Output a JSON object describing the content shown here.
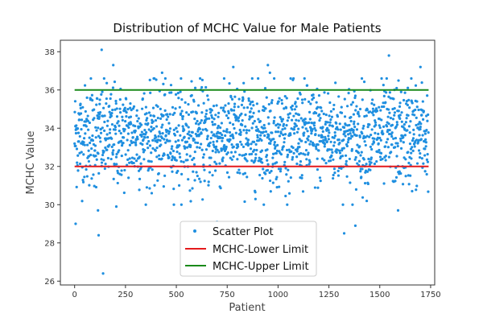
{
  "chart_data": {
    "type": "scatter",
    "title": "Distribution of MCHC Value for Male Patients",
    "xlabel": "Patient",
    "ylabel": "MCHC Value",
    "xlim": [
      -70,
      1770
    ],
    "ylim": [
      25.8,
      38.6
    ],
    "xticks": [
      0,
      250,
      500,
      750,
      1000,
      1250,
      1500,
      1750
    ],
    "yticks": [
      26,
      28,
      30,
      32,
      34,
      36,
      38
    ],
    "grid": false,
    "legend_position": "lower-center",
    "colors": {
      "scatter": "#1f8fe0",
      "lower_limit": "#e41a1c",
      "upper_limit": "#1a8a1a"
    },
    "series": [
      {
        "name": "Scatter Plot",
        "kind": "scatter",
        "count": 1740,
        "y_center": 33.6,
        "y_spread": 1.3,
        "outliers": [
          {
            "x": 133,
            "y": 38.1
          },
          {
            "x": 190,
            "y": 37.3
          },
          {
            "x": 140,
            "y": 26.4
          },
          {
            "x": 118,
            "y": 28.4
          },
          {
            "x": 5,
            "y": 29.0
          },
          {
            "x": 700,
            "y": 29.1
          },
          {
            "x": 1380,
            "y": 28.9
          },
          {
            "x": 1325,
            "y": 28.5
          },
          {
            "x": 1545,
            "y": 37.8
          },
          {
            "x": 950,
            "y": 37.3
          },
          {
            "x": 1700,
            "y": 37.2
          },
          {
            "x": 780,
            "y": 37.2
          },
          {
            "x": 1590,
            "y": 29.7
          },
          {
            "x": 115,
            "y": 29.7
          },
          {
            "x": 205,
            "y": 29.9
          },
          {
            "x": 430,
            "y": 36.9
          },
          {
            "x": 960,
            "y": 36.9
          },
          {
            "x": 80,
            "y": 36.6
          },
          {
            "x": 1655,
            "y": 36.6
          }
        ]
      },
      {
        "name": "MCHC-Lower Limit",
        "kind": "line",
        "x": [
          0,
          1740
        ],
        "y": [
          32,
          32
        ]
      },
      {
        "name": "MCHC-Upper Limit",
        "kind": "line",
        "x": [
          0,
          1740
        ],
        "y": [
          36,
          36
        ]
      }
    ]
  }
}
